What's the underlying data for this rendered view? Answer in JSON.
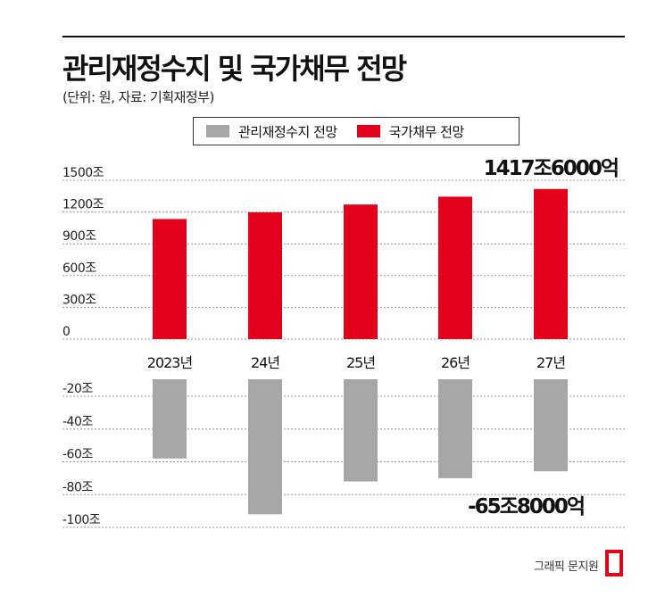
{
  "header": {
    "title": "관리재정수지 및 국가채무 전망",
    "subtitle": "(단위: 원, 자료: 기획재정부)"
  },
  "legend": [
    {
      "label": "관리재정수지 전망",
      "color": "#a6a6a6"
    },
    {
      "label": "국가채무 전망",
      "color": "#e2001a"
    }
  ],
  "credit": "그래픽 문지원",
  "chart_data": [
    {
      "type": "bar",
      "name": "국가채무 전망",
      "categories": [
        "2023년",
        "24년",
        "25년",
        "26년",
        "27년"
      ],
      "values": [
        1134,
        1197,
        1271,
        1345,
        1417.6
      ],
      "ylim": [
        0,
        1500
      ],
      "yticks": [
        "0",
        "300조",
        "600조",
        "900조",
        "1200조",
        "1500조"
      ],
      "ytick_values": [
        0,
        300,
        600,
        900,
        1200,
        1500
      ],
      "color": "#e2001a",
      "annotation": "1417조6000억"
    },
    {
      "type": "bar",
      "name": "관리재정수지 전망",
      "categories": [
        "2023년",
        "24년",
        "25년",
        "26년",
        "27년"
      ],
      "values": [
        -58,
        -92,
        -72,
        -70,
        -65.8
      ],
      "ylim": [
        -100,
        -20
      ],
      "yticks": [
        "-20조",
        "-40조",
        "-60조",
        "-80조",
        "-100조"
      ],
      "ytick_values": [
        -20,
        -40,
        -60,
        -80,
        -100
      ],
      "color": "#a6a6a6",
      "annotation": "-65조8000억"
    }
  ]
}
